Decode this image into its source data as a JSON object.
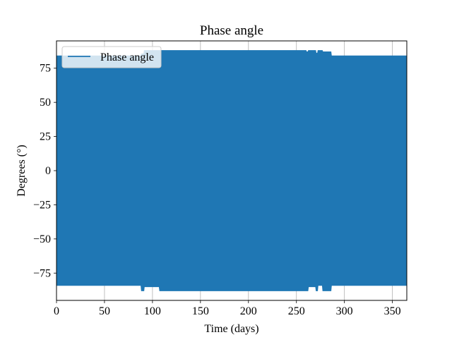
{
  "colors": {
    "series": "#1f77b4",
    "grid": "#b0b0b0",
    "axis": "#000000",
    "legend_border": "#cccccc"
  },
  "chart_data": {
    "type": "line",
    "title": "Phase angle",
    "xlabel": "Time (days)",
    "ylabel": "Degrees (°)",
    "xlim": [
      0,
      365
    ],
    "ylim": [
      -95,
      95
    ],
    "grid": true,
    "legend_position": "top-left",
    "x_ticks": [
      0,
      50,
      100,
      150,
      200,
      250,
      300,
      350
    ],
    "x_tick_labels": [
      "0",
      "50",
      "100",
      "150",
      "200",
      "250",
      "300",
      "350"
    ],
    "y_ticks": [
      75,
      50,
      25,
      0,
      -25,
      -50,
      -75
    ],
    "y_tick_labels": [
      "75",
      "50",
      "25",
      "0",
      "−25",
      "−50",
      "−75"
    ],
    "series": [
      {
        "name": "Phase angle",
        "envelope": {
          "x": [
            0,
            88,
            88.5,
            91,
            91.5,
            107,
            107.5,
            128,
            128.5,
            260,
            260.5,
            262,
            262.5,
            270,
            270.5,
            272,
            272.5,
            277,
            277.5,
            286,
            286.5,
            365
          ],
          "upper": [
            84,
            84,
            85.5,
            85.5,
            88,
            88,
            88,
            88,
            88,
            88,
            87,
            87,
            88,
            88,
            86,
            86,
            88,
            88,
            87,
            87,
            84,
            84
          ],
          "lower": [
            -84,
            -84,
            -88,
            -88,
            -85,
            -85,
            -88,
            -88,
            -88,
            -88,
            -88,
            -88,
            -85,
            -85,
            -88,
            -88,
            -84,
            -84,
            -88,
            -88,
            -84,
            -84
          ]
        }
      }
    ]
  }
}
